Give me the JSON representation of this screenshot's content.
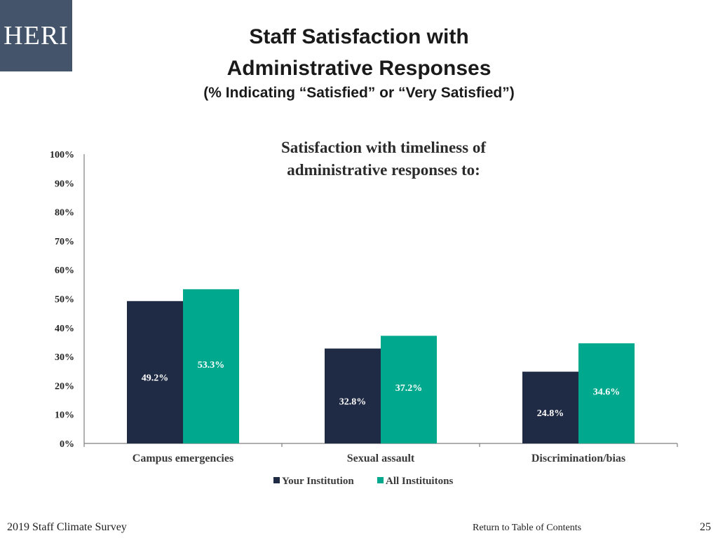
{
  "logo": {
    "text": "HERI"
  },
  "header": {
    "line1": "Staff Satisfaction with",
    "line2": "Administrative Responses",
    "line3": "(% Indicating “Satisfied” or “Very Satisfied”)"
  },
  "chart_data": {
    "type": "bar",
    "title_lines": [
      "Satisfaction with timeliness of",
      "administrative responses to:"
    ],
    "categories": [
      "Campus emergencies",
      "Sexual assault",
      "Discrimination/bias"
    ],
    "series": [
      {
        "name": "Your Institution",
        "color": "#1f2a44",
        "values": [
          49.2,
          32.8,
          24.8
        ],
        "labels": [
          "49.2%",
          "32.8%",
          "24.8%"
        ]
      },
      {
        "name": "All Instituitons",
        "color": "#00a88e",
        "values": [
          53.3,
          37.2,
          34.6
        ],
        "labels": [
          "53.3%",
          "37.2%",
          "34.6%"
        ]
      }
    ],
    "ylim": [
      0,
      100
    ],
    "yticks": [
      "0%",
      "10%",
      "20%",
      "30%",
      "40%",
      "50%",
      "60%",
      "70%",
      "80%",
      "90%",
      "100%"
    ],
    "legend_position": "bottom"
  },
  "footer": {
    "survey": "2019 Staff Climate Survey",
    "toc_link": "Return to Table of Contents",
    "page_number": "25"
  }
}
